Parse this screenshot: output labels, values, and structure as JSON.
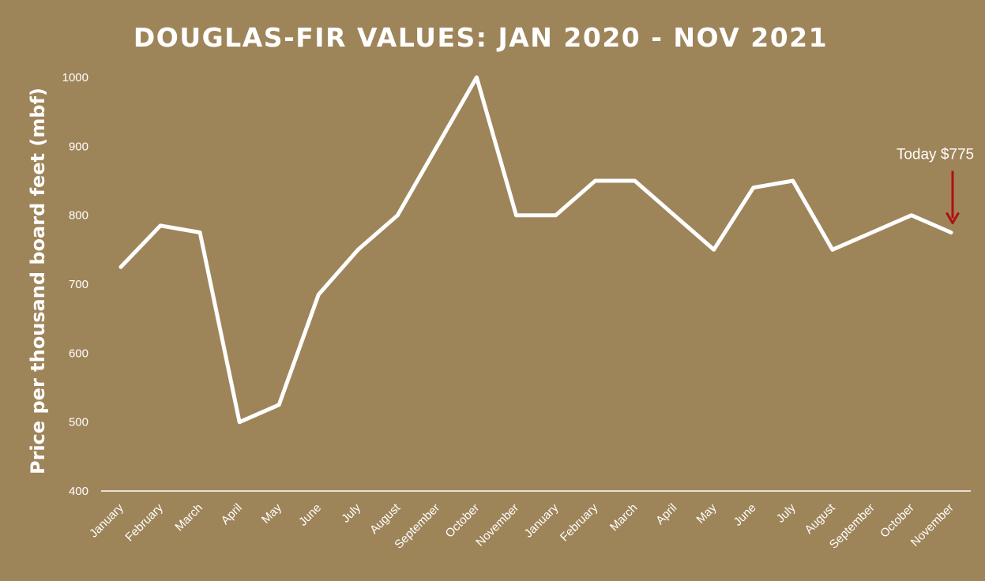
{
  "chart_data": {
    "type": "line",
    "title": "DOUGLAS-FIR VALUES: JAN 2020 - NOV 2021",
    "ylabel": "Price per thousand board feet (mbf)",
    "xlabel": "",
    "ylim": [
      400,
      1000
    ],
    "yticks": [
      400,
      500,
      600,
      700,
      800,
      900,
      1000
    ],
    "categories": [
      "January",
      "February",
      "March",
      "April",
      "May",
      "June",
      "July",
      "August",
      "September",
      "October",
      "November",
      "January",
      "February",
      "March",
      "April",
      "May",
      "June",
      "July",
      "August",
      "September",
      "October",
      "November"
    ],
    "values": [
      725,
      785,
      775,
      500,
      525,
      685,
      750,
      800,
      900,
      1000,
      800,
      800,
      850,
      850,
      800,
      750,
      840,
      850,
      750,
      775,
      800,
      775
    ],
    "grid": false,
    "drop_lines": true,
    "annotation": {
      "text": "Today $775",
      "category_index": 21
    },
    "colors": {
      "background": "#9e8459",
      "line": "#ffffff",
      "arrow": "#b01010"
    }
  }
}
